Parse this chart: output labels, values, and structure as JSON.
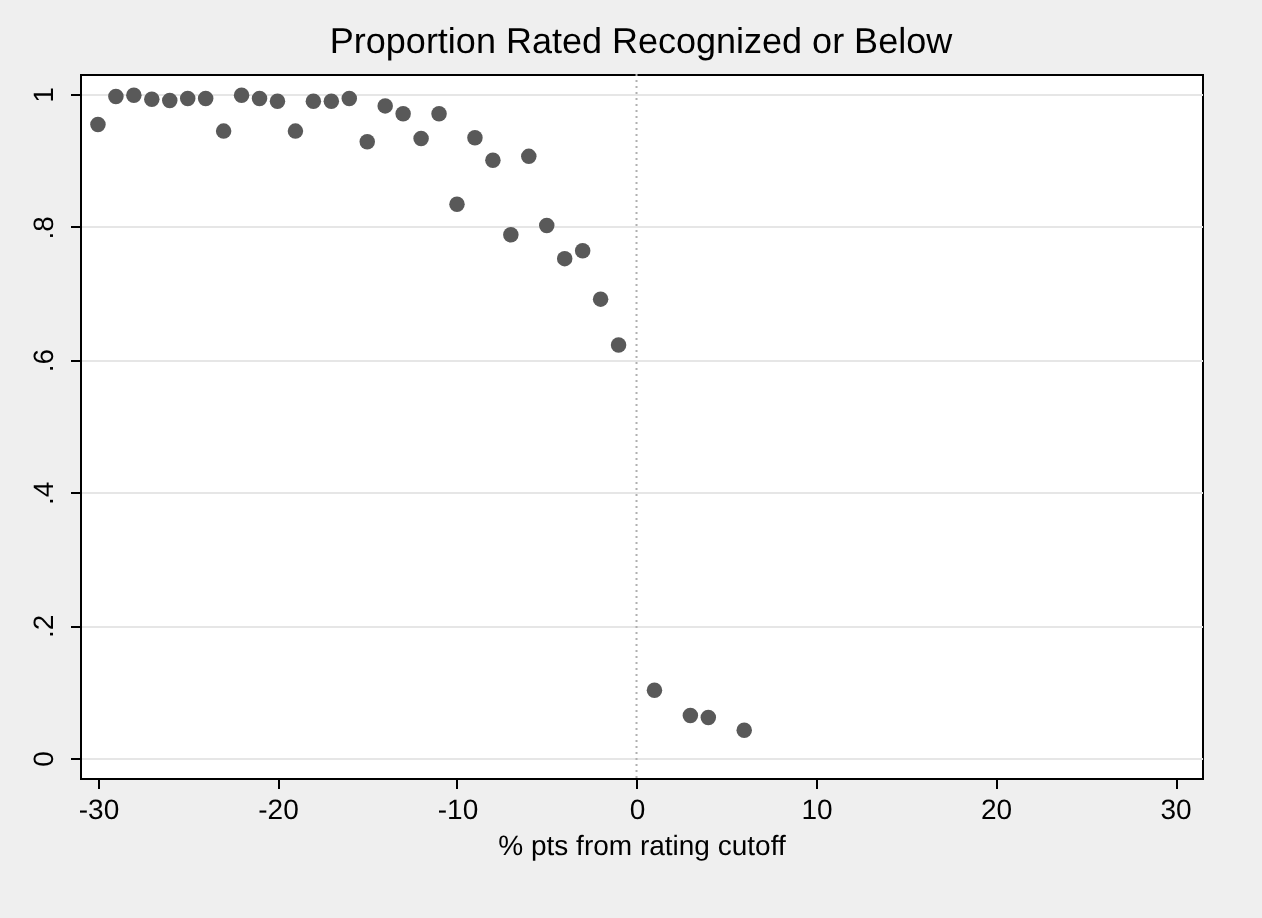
{
  "chart_data": {
    "type": "scatter",
    "title": "Proportion Rated Recognized or Below",
    "xlabel": "% pts from rating cutoff",
    "x": [
      -30,
      -29,
      -28,
      -27,
      -26,
      -25,
      -24,
      -23,
      -22,
      -21,
      -20,
      -19,
      -18,
      -17,
      -16,
      -15,
      -14,
      -13,
      -12,
      -11,
      -10,
      -9,
      -8,
      -7,
      -6,
      -5,
      -4,
      -3,
      -2,
      -1,
      1,
      3,
      4,
      6
    ],
    "series": [
      {
        "color": "#595959",
        "values": [
          0.954,
          0.996,
          0.998,
          0.992,
          0.99,
          0.993,
          0.993,
          0.944,
          0.998,
          0.993,
          0.989,
          0.944,
          0.989,
          0.989,
          0.993,
          0.928,
          0.982,
          0.97,
          0.933,
          0.97,
          0.834,
          0.934,
          0.9,
          0.788,
          0.906,
          0.802,
          0.752,
          0.764,
          0.691,
          0.622,
          0.102,
          0.064,
          0.061,
          0.042
        ]
      }
    ],
    "xlim": [
      -31,
      31.5
    ],
    "xticks": [
      -30,
      -20,
      -10,
      0,
      10,
      20,
      30
    ],
    "ylim": [
      -0.03,
      1.03
    ],
    "yticks": [
      {
        "value": 0,
        "label": "0"
      },
      {
        "value": 0.2,
        "label": ".2"
      },
      {
        "value": 0.4,
        "label": ".4"
      },
      {
        "value": 0.6,
        "label": ".6"
      },
      {
        "value": 0.8,
        "label": ".8"
      },
      {
        "value": 1,
        "label": "1"
      }
    ],
    "grid": "y",
    "marker": "circle",
    "ref_lines": [
      {
        "axis": "x",
        "value": 0,
        "color": "#b0b0b0",
        "line_style": "dotted"
      }
    ]
  }
}
